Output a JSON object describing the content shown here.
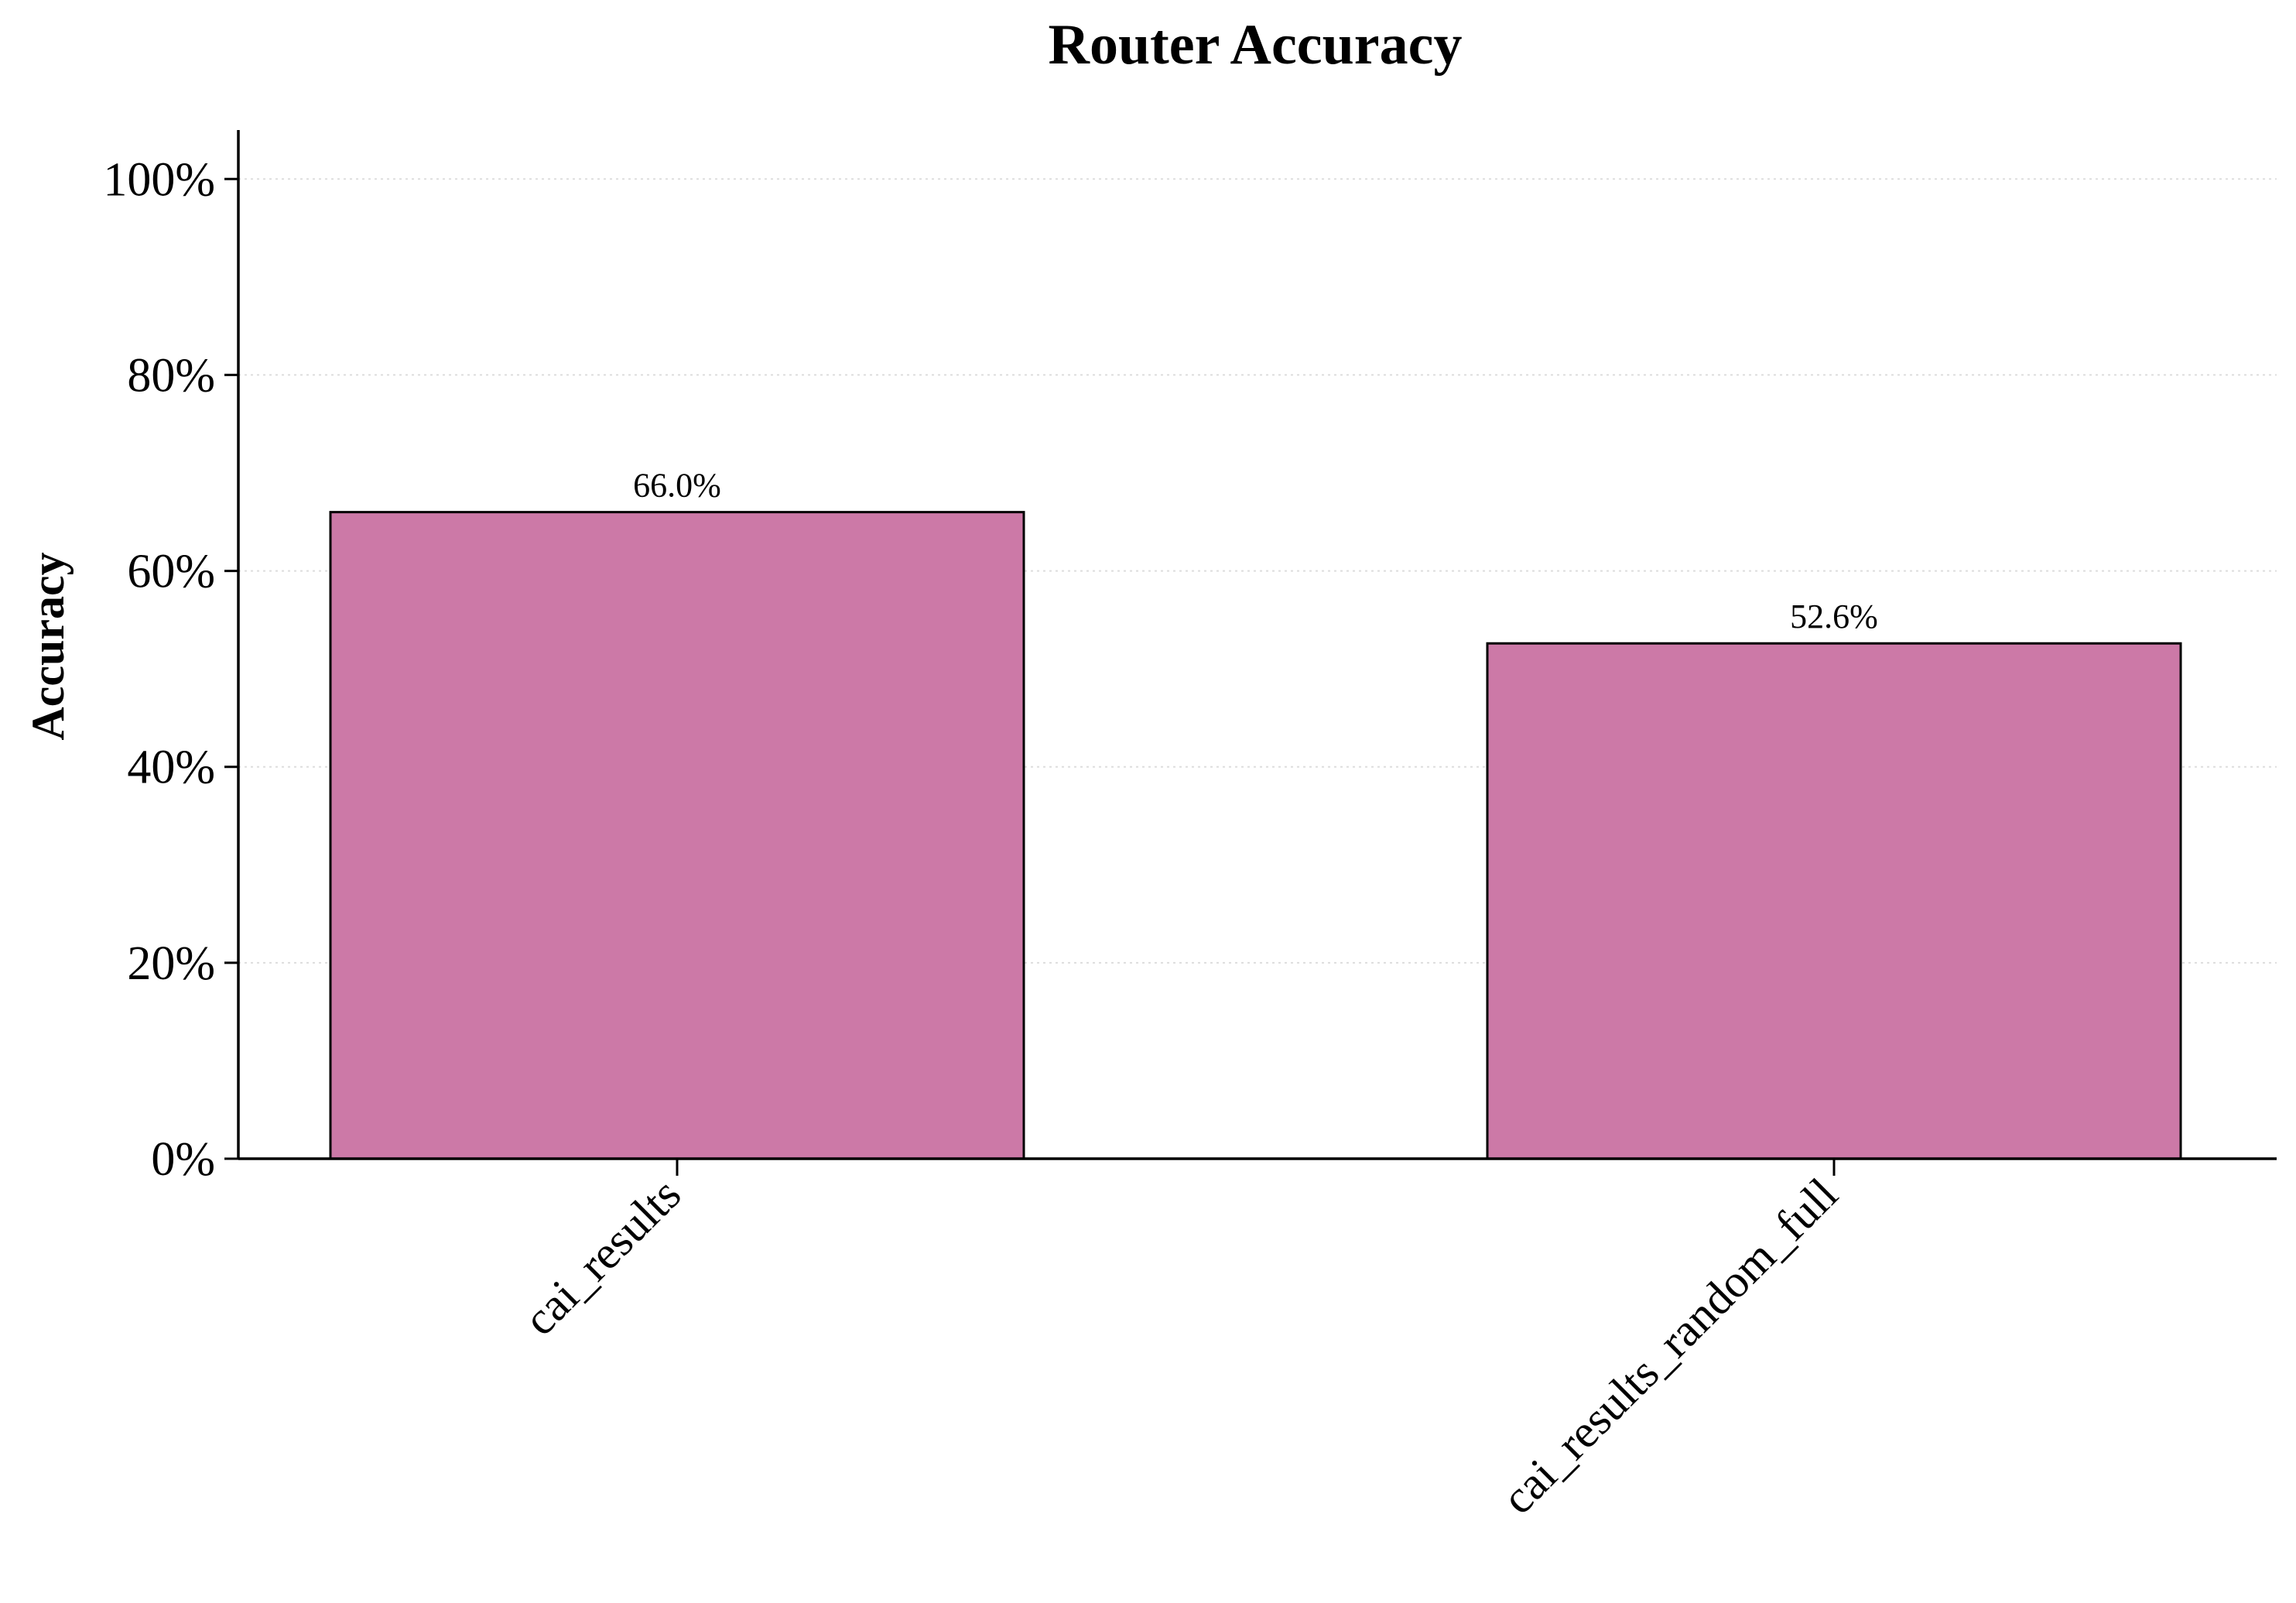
{
  "chart_data": {
    "type": "bar",
    "title": "Router Accuracy",
    "xlabel": "",
    "ylabel": "Accuracy",
    "categories": [
      "cai_results",
      "cai_results_random_full"
    ],
    "values": [
      66.0,
      52.6
    ],
    "value_labels": [
      "66.0%",
      "52.6%"
    ],
    "ylim": [
      0,
      105
    ],
    "yticks": [
      0,
      20,
      40,
      60,
      80,
      100
    ],
    "ytick_labels": [
      "0%",
      "20%",
      "40%",
      "60%",
      "80%",
      "100%"
    ],
    "grid": "horizontal dotted",
    "legend": "none",
    "colors": {
      "bar_fill": "#cc79a7",
      "bar_edge": "#000000",
      "axis": "#000000",
      "grid": "#dddddd"
    }
  }
}
